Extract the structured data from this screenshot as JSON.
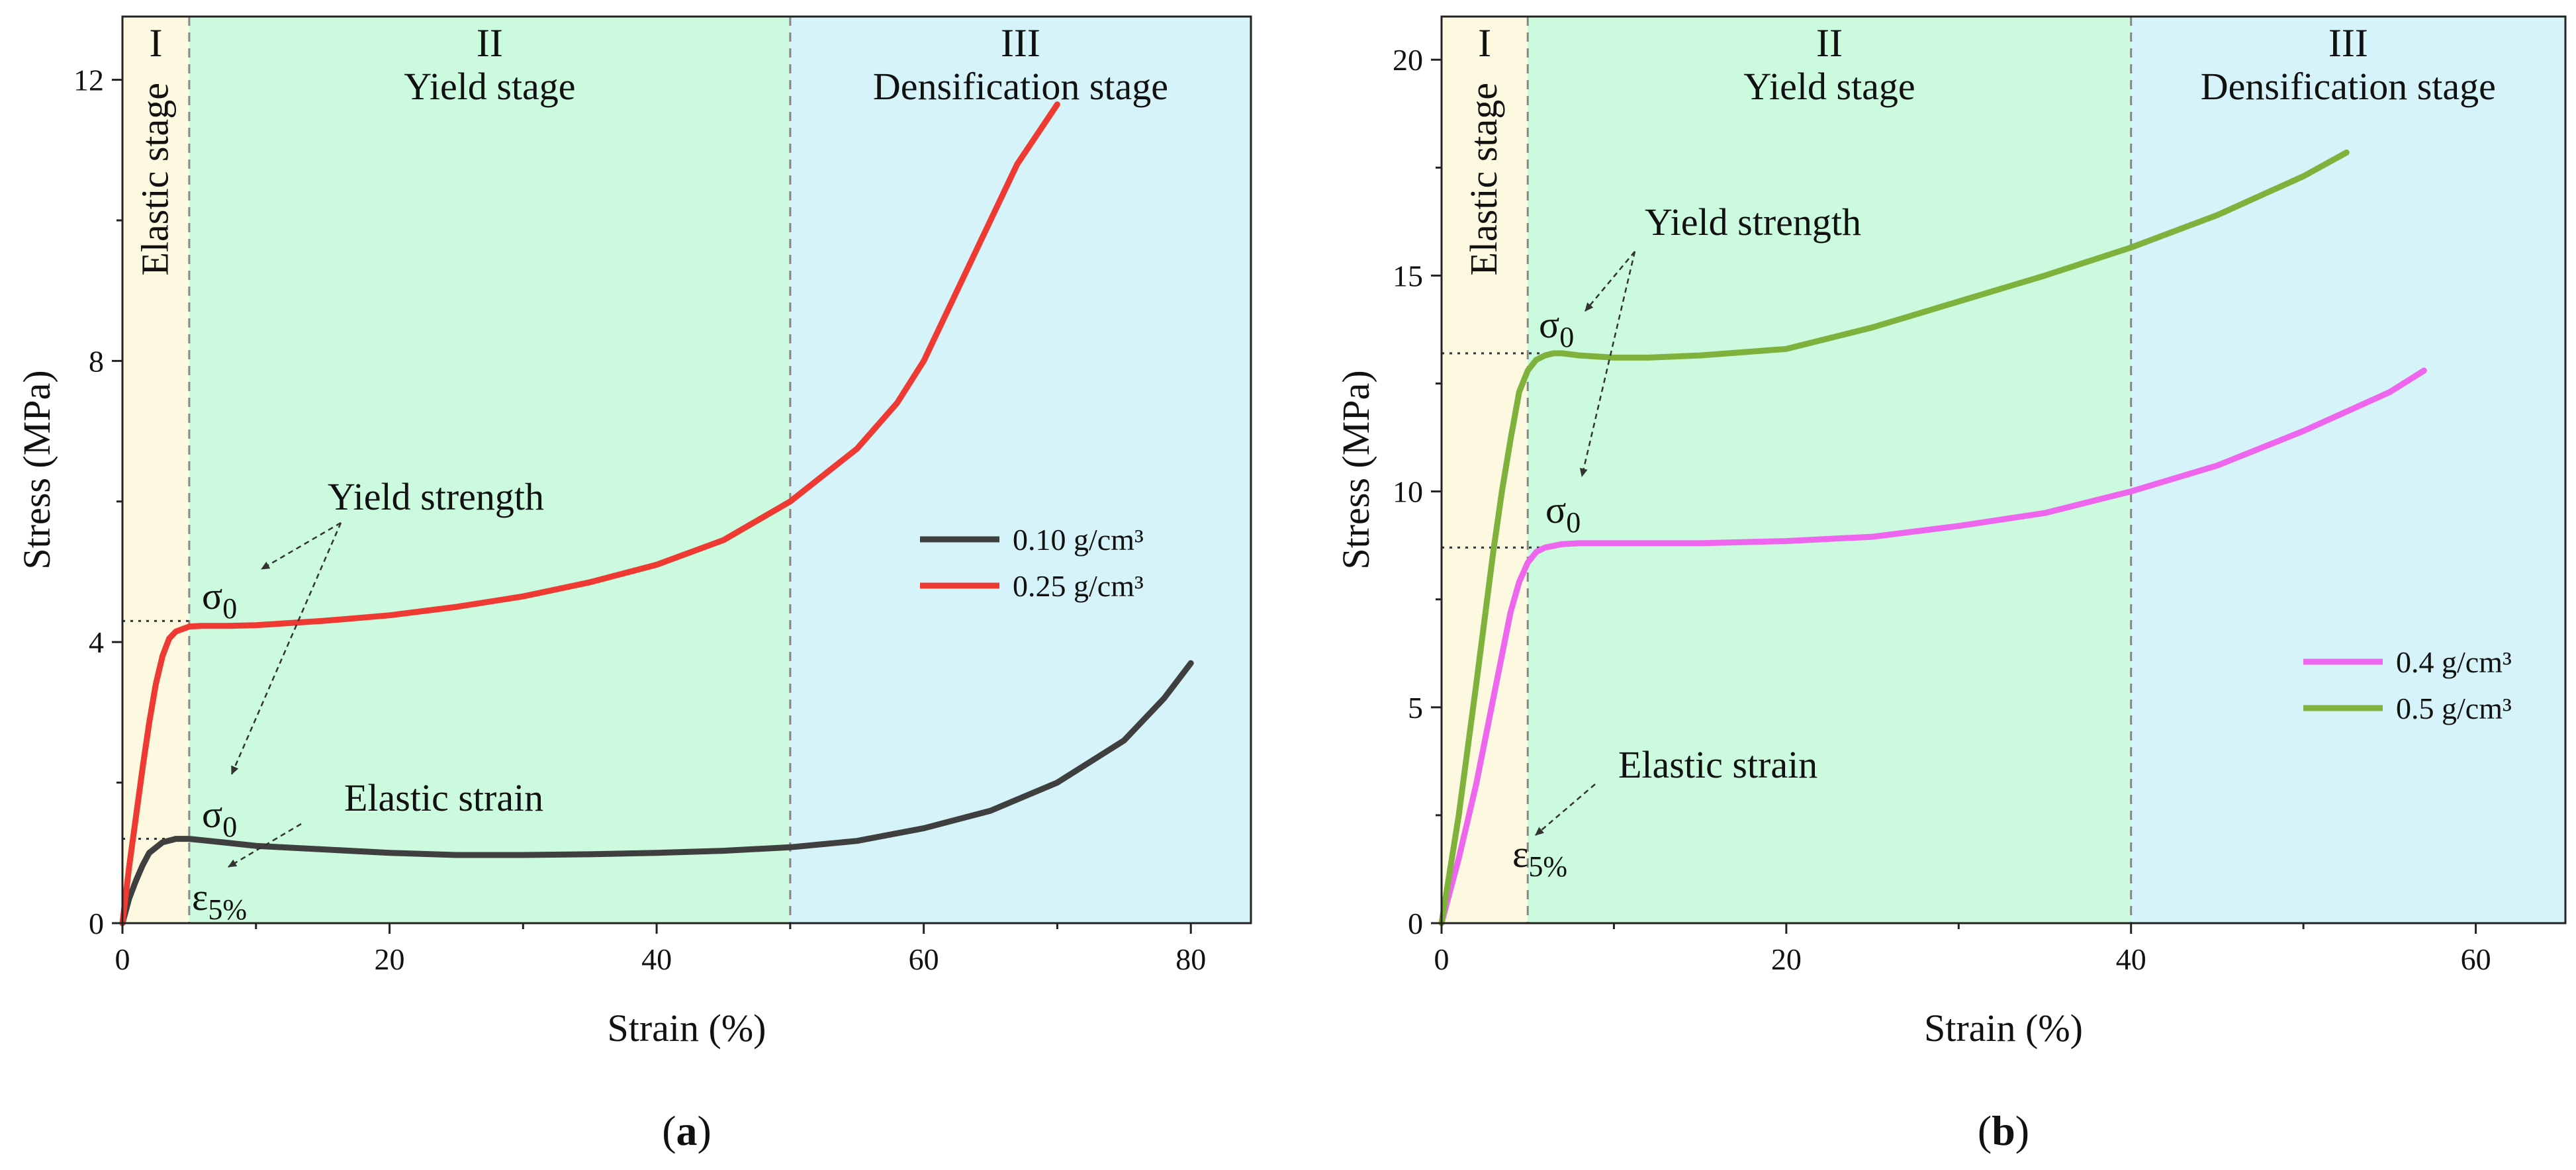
{
  "figure": {
    "chart_data": [
      {
        "id": "a",
        "type": "line",
        "caption": "(a)",
        "caption_bold": "a",
        "xlabel": "Strain (%)",
        "ylabel": "Stress (MPa)",
        "xlim": [
          0,
          84.5
        ],
        "ylim": [
          0,
          12.9
        ],
        "xticks": [
          0,
          20,
          40,
          60,
          80
        ],
        "yticks": [
          0,
          4,
          8,
          12
        ],
        "stages": [
          {
            "numeral": "I",
            "name": "Elastic stage",
            "from": 0,
            "to": 5,
            "color": "#fcf9e0",
            "vertical": true
          },
          {
            "numeral": "II",
            "name": "Yield stage",
            "from": 5,
            "to": 50,
            "color": "#ccfadf",
            "vertical": false
          },
          {
            "numeral": "III",
            "name": "Densification stage",
            "from": 50,
            "to": 84.5,
            "color": "#d6f3fa",
            "vertical": false
          }
        ],
        "series": [
          {
            "name": "0.10 g/cm³",
            "color": "#3f3f3f",
            "x": [
              0,
              0.5,
              1,
              1.5,
              2,
              3,
              4,
              5,
              6,
              8,
              10,
              15,
              20,
              25,
              30,
              35,
              40,
              45,
              50,
              55,
              60,
              65,
              70,
              75,
              78,
              80
            ],
            "y": [
              0,
              0.35,
              0.6,
              0.82,
              1.0,
              1.15,
              1.2,
              1.2,
              1.18,
              1.14,
              1.1,
              1.05,
              1.0,
              0.97,
              0.97,
              0.98,
              1.0,
              1.03,
              1.08,
              1.17,
              1.35,
              1.6,
              2.0,
              2.6,
              3.2,
              3.7
            ]
          },
          {
            "name": "0.25 g/cm³",
            "color": "#ee3a33",
            "x": [
              0,
              0.5,
              1,
              1.5,
              2,
              2.5,
              3,
              3.5,
              4,
              5,
              6,
              8,
              10,
              15,
              20,
              25,
              30,
              35,
              40,
              45,
              50,
              55,
              58,
              60,
              62,
              65,
              67,
              70
            ],
            "y": [
              0,
              0.8,
              1.5,
              2.2,
              2.85,
              3.4,
              3.8,
              4.05,
              4.15,
              4.22,
              4.23,
              4.23,
              4.24,
              4.3,
              4.38,
              4.5,
              4.65,
              4.85,
              5.1,
              5.45,
              6.0,
              6.75,
              7.4,
              8.0,
              8.8,
              10.0,
              10.8,
              11.65
            ]
          }
        ],
        "legend": {
          "position": "right",
          "items": [
            "0.10 g/cm³",
            "0.25 g/cm³"
          ]
        },
        "reference_lines": [
          {
            "y": 4.3,
            "x_to": 5
          },
          {
            "y": 1.2,
            "x_to": 5
          }
        ],
        "annotations": {
          "yield_strength": "Yield strength",
          "elastic_strain": "Elastic strain",
          "sigma_symbol": "σ",
          "sigma_subscript": "0",
          "epsilon_symbol": "ε",
          "epsilon_subscript": "5%"
        }
      },
      {
        "id": "b",
        "type": "line",
        "caption": "(b)",
        "caption_bold": "b",
        "xlabel": "Strain (%)",
        "ylabel": "Stress (MPa)",
        "xlim": [
          0,
          65.2
        ],
        "ylim": [
          0,
          21
        ],
        "xticks": [
          0,
          20,
          40,
          60
        ],
        "yticks": [
          0,
          5,
          10,
          15,
          20
        ],
        "stages": [
          {
            "numeral": "I",
            "name": "Elastic stage",
            "from": 0,
            "to": 5,
            "color": "#fcf9e0",
            "vertical": true
          },
          {
            "numeral": "II",
            "name": "Yield stage",
            "from": 5,
            "to": 40,
            "color": "#ccfadf",
            "vertical": false
          },
          {
            "numeral": "III",
            "name": "Densification stage",
            "from": 40,
            "to": 65.2,
            "color": "#d6f3fa",
            "vertical": false
          }
        ],
        "series": [
          {
            "name": "0.4 g/cm³",
            "color": "#ee66ee",
            "x": [
              0,
              1,
              2,
              3,
              4,
              4.5,
              5,
              5.5,
              6,
              7,
              8,
              10,
              15,
              20,
              25,
              30,
              35,
              40,
              45,
              50,
              55,
              57
            ],
            "y": [
              0,
              1.5,
              3.2,
              5.2,
              7.2,
              7.9,
              8.35,
              8.6,
              8.7,
              8.78,
              8.8,
              8.8,
              8.8,
              8.85,
              8.95,
              9.2,
              9.5,
              10.0,
              10.6,
              11.4,
              12.3,
              12.8
            ]
          },
          {
            "name": "0.5 g/cm³",
            "color": "#7fb23c",
            "x": [
              0,
              1,
              2,
              3,
              3.5,
              4,
              4.5,
              5,
              5.5,
              6,
              6.5,
              7,
              8,
              10,
              12,
              15,
              20,
              25,
              30,
              35,
              40,
              45,
              50,
              52.5
            ],
            "y": [
              0,
              2.5,
              5.5,
              8.6,
              10.0,
              11.2,
              12.3,
              12.8,
              13.05,
              13.15,
              13.2,
              13.2,
              13.15,
              13.1,
              13.1,
              13.15,
              13.3,
              13.8,
              14.4,
              15.0,
              15.65,
              16.4,
              17.3,
              17.85
            ]
          }
        ],
        "legend": {
          "position": "bottom-right",
          "items": [
            "0.4 g/cm³",
            "0.5 g/cm³"
          ]
        },
        "reference_lines": [
          {
            "y": 13.2,
            "x_to": 6.5
          },
          {
            "y": 8.7,
            "x_to": 6
          }
        ],
        "annotations": {
          "yield_strength": "Yield strength",
          "elastic_strain": "Elastic strain",
          "sigma_symbol": "σ",
          "sigma_subscript": "0",
          "epsilon_symbol": "ε",
          "epsilon_subscript": "5%"
        }
      }
    ]
  }
}
